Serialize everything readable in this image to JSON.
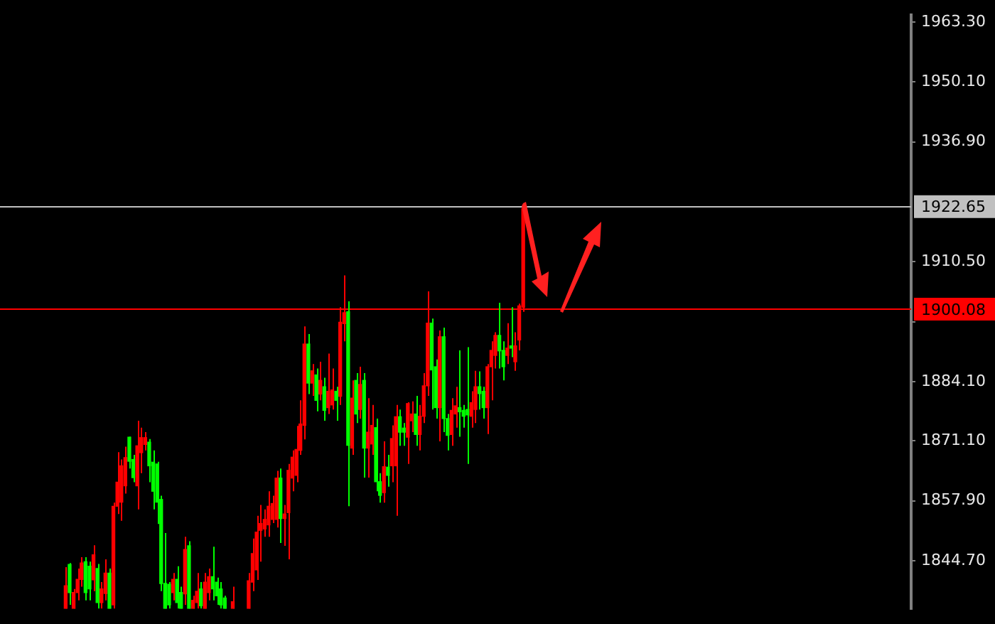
{
  "chart_data": {
    "type": "candlestick",
    "categories": [
      null,
      null,
      null,
      null,
      null,
      null,
      null,
      null,
      null,
      null,
      null,
      null,
      null,
      null,
      null,
      null,
      null,
      null,
      null,
      null,
      null,
      null,
      null,
      null,
      null,
      null,
      null,
      null,
      null,
      null,
      null,
      null,
      null,
      null,
      null,
      null,
      null,
      null,
      null,
      null,
      null,
      null,
      null,
      null,
      null,
      null,
      null,
      null,
      null,
      null,
      null,
      null,
      null,
      null,
      null,
      null,
      null,
      null,
      null,
      null,
      null,
      null,
      null,
      null,
      null,
      null,
      null,
      null,
      null,
      null,
      null,
      null,
      null,
      null,
      null,
      null,
      null,
      null,
      null,
      null,
      null,
      null,
      null,
      null,
      null,
      null,
      null,
      null,
      null,
      null,
      null,
      null,
      null,
      null,
      null,
      null,
      null,
      null,
      null,
      null,
      null,
      null,
      null,
      null,
      null,
      null,
      null,
      null,
      null,
      null,
      null,
      null,
      null,
      null,
      null,
      null,
      null,
      null,
      null,
      null,
      null,
      null,
      null,
      null,
      null,
      null,
      null,
      null,
      null,
      null,
      null,
      null,
      null,
      null,
      null,
      null,
      null,
      null,
      null,
      null,
      null,
      null,
      null,
      null,
      null,
      null,
      null,
      null,
      null,
      null,
      null,
      null,
      null,
      null,
      null,
      null,
      null,
      null,
      null,
      null,
      null,
      null,
      null,
      null,
      null,
      null,
      null,
      null,
      null,
      null,
      null,
      null,
      null,
      null,
      null,
      null,
      null,
      null,
      null,
      null,
      null,
      null,
      null,
      null,
      null,
      null,
      null,
      null,
      null,
      null,
      null,
      null,
      null,
      null,
      null,
      null,
      null,
      null,
      null,
      null,
      null,
      null,
      null,
      null,
      null,
      null,
      null,
      null,
      null,
      null,
      null,
      null,
      null,
      null,
      null,
      null,
      null,
      null,
      null,
      null,
      null,
      null,
      null,
      null,
      null,
      null,
      null,
      null,
      null
    ],
    "ohlc": [
      null,
      null,
      null,
      null,
      null,
      null,
      null,
      null,
      null,
      null,
      null,
      null,
      null,
      null,
      null,
      null,
      [
        1834.2,
        1843.3,
        1834.2,
        1839.2
      ],
      [
        1843.9,
        1844.2,
        1835,
        1837.7
      ],
      [
        1834.2,
        1838.5,
        1834.2,
        1837.7
      ],
      [
        1837.7,
        1843,
        1836,
        1840.6
      ],
      [
        1840.6,
        1845.5,
        1839,
        1844.2
      ],
      [
        1844.5,
        1845.5,
        1836,
        1837.7
      ],
      [
        1843.5,
        1844.5,
        1836,
        1838.5
      ],
      [
        1840.5,
        1848.1,
        1838,
        1846
      ],
      [
        1843,
        1844,
        1834.2,
        1835.5
      ],
      [
        1835.5,
        1840,
        1834.2,
        1838.5
      ],
      [
        1837.5,
        1845,
        1836,
        1842
      ],
      [
        1842,
        1843,
        1834.2,
        1834.2
      ],
      [
        1835,
        1857.5,
        1834.2,
        1856.7
      ],
      [
        1856.7,
        1868.6,
        1855,
        1862
      ],
      [
        1857.6,
        1867,
        1853.5,
        1865.6
      ],
      [
        1861.2,
        1869.8,
        1859.5,
        1867.4
      ],
      [
        1871.9,
        1872,
        1865,
        1866.6
      ],
      [
        1867,
        1868,
        1862,
        1863
      ],
      [
        1861.2,
        1875.5,
        1856,
        1870
      ],
      [
        1868.5,
        1874,
        1864,
        1871.8
      ],
      [
        1870.3,
        1873,
        1869,
        1871.8
      ],
      [
        1870.8,
        1871.5,
        1862,
        1865.6
      ],
      [
        1866.4,
        1869,
        1856,
        1860
      ],
      [
        1866,
        1866.5,
        1852.8,
        1857.6
      ],
      [
        1858.2,
        1859,
        1838,
        1839.7
      ],
      [
        1839.7,
        1850.8,
        1834.2,
        1834.2
      ],
      [
        1839.5,
        1840,
        1834.2,
        1835
      ],
      [
        1837.7,
        1842,
        1836,
        1840.6
      ],
      [
        1840.6,
        1843.5,
        1834.2,
        1835.5
      ],
      [
        1837.7,
        1839,
        1834.2,
        1834.2
      ],
      [
        1837.4,
        1850,
        1835,
        1847.2
      ],
      [
        1848,
        1849,
        1834.2,
        1834.2
      ],
      [
        1834.2,
        1837,
        1834.2,
        1836
      ],
      [
        1835.5,
        1842,
        1834.2,
        1838
      ],
      [
        1838.5,
        1840,
        1834.2,
        1834.8
      ],
      [
        1834.2,
        1842,
        1834.2,
        1840
      ],
      [
        1837.7,
        1843,
        1836,
        1841.2
      ],
      [
        1841.2,
        1847.8,
        1836,
        1838.5
      ],
      [
        1840,
        1841,
        1835,
        1837
      ],
      [
        1838.5,
        1840,
        1834.2,
        1835
      ],
      [
        1836.5,
        1837,
        1834.2,
        1834.2
      ],
      null,
      [
        1834.2,
        1839,
        1834.2,
        1835.7
      ],
      null,
      null,
      null,
      [
        1834.2,
        1842,
        1834.2,
        1840.3
      ],
      [
        1840,
        1849.6,
        1838,
        1846.3
      ],
      [
        1842.7,
        1854.6,
        1840.5,
        1851
      ],
      [
        1851.4,
        1857,
        1844.5,
        1852.9
      ],
      [
        1851.7,
        1856,
        1850,
        1853.8
      ],
      [
        1852.6,
        1860,
        1850,
        1856.7
      ],
      [
        1853.8,
        1859,
        1853,
        1857.3
      ],
      [
        1853.8,
        1864.5,
        1852,
        1862.9
      ],
      [
        1862.9,
        1865,
        1848.6,
        1854
      ],
      [
        1854,
        1857,
        1848,
        1855
      ],
      [
        1855.3,
        1866,
        1845,
        1864.6
      ],
      [
        1862.9,
        1869,
        1860,
        1867.5
      ],
      [
        1863.5,
        1874.4,
        1862,
        1869.2
      ],
      [
        1869,
        1880,
        1868,
        1874.8
      ],
      [
        1874.5,
        1896.3,
        1871.4,
        1892.4
      ],
      [
        1892.4,
        1894.6,
        1881.4,
        1883.8
      ],
      [
        1883.8,
        1888,
        1881,
        1886.5
      ],
      [
        1885.6,
        1887,
        1877.6,
        1880
      ],
      [
        1881.4,
        1888.5,
        1880,
        1884.4
      ],
      [
        1883,
        1885,
        1875.5,
        1877.8
      ],
      [
        1878.4,
        1890.3,
        1877,
        1882
      ],
      [
        1879,
        1887,
        1878,
        1882.3
      ],
      [
        1882,
        1883,
        1875.5,
        1880
      ],
      [
        1880.9,
        1900.5,
        1879,
        1897.2
      ],
      [
        1896.9,
        1907.5,
        1893,
        1899.3
      ],
      [
        1899.5,
        1901.8,
        1856.7,
        1870.1
      ],
      [
        1869.5,
        1884.4,
        1868,
        1880.5
      ],
      [
        1884.4,
        1886,
        1875,
        1877
      ],
      [
        1878,
        1887.4,
        1876,
        1883.5
      ],
      [
        1884.4,
        1886,
        1863,
        1869.5
      ],
      [
        1869.5,
        1880.5,
        1863,
        1873
      ],
      [
        1870.4,
        1879,
        1868,
        1874.5
      ],
      [
        1874,
        1876,
        1860,
        1862.1
      ],
      [
        1862.1,
        1864,
        1857.5,
        1859.1
      ],
      [
        1859.7,
        1871,
        1857.5,
        1865.4
      ],
      [
        1865.3,
        1868,
        1861,
        1863.5
      ],
      [
        1865.6,
        1874.5,
        1862,
        1871.6
      ],
      [
        1865.6,
        1879,
        1854.6,
        1876.4
      ],
      [
        1876.4,
        1878,
        1870,
        1873
      ],
      [
        1873.9,
        1875,
        1870,
        1873
      ],
      [
        1871.9,
        1879.6,
        1866,
        1879.3
      ],
      [
        1875.5,
        1879.8,
        1873,
        1877
      ],
      [
        1877,
        1881,
        1870,
        1872.5
      ],
      [
        1872.5,
        1879,
        1869,
        1876.5
      ],
      [
        1876.5,
        1886,
        1875,
        1883.2
      ],
      [
        1883.2,
        1904,
        1881,
        1897
      ],
      [
        1897,
        1898,
        1878,
        1886.7
      ],
      [
        1887.4,
        1889,
        1876,
        1878.4
      ],
      [
        1878.4,
        1895.4,
        1871,
        1894
      ],
      [
        1894,
        1896,
        1873,
        1876
      ],
      [
        1876,
        1877,
        1869,
        1872.3
      ],
      [
        1872.5,
        1880.5,
        1870,
        1877.8
      ],
      [
        1877,
        1883,
        1874,
        1878.8
      ],
      [
        1878.4,
        1891,
        1872,
        1877.5
      ],
      [
        1877.8,
        1879,
        1874,
        1876.5
      ],
      [
        1878,
        1891.7,
        1866,
        1876.8
      ],
      [
        1876.5,
        1882,
        1874,
        1879.5
      ],
      [
        1878,
        1886.5,
        1875,
        1883
      ],
      [
        1883,
        1886.4,
        1878,
        1881.5
      ],
      [
        1882,
        1883,
        1876,
        1878.4
      ],
      [
        1878.4,
        1888,
        1872.6,
        1887.4
      ],
      [
        1887.4,
        1893,
        1880,
        1891
      ],
      [
        1889.9,
        1895,
        1887,
        1894.3
      ],
      [
        1894.3,
        1901.5,
        1887,
        1890.9
      ],
      [
        1891,
        1893,
        1884.4,
        1887.4
      ],
      [
        1889.9,
        1897,
        1888,
        1891.5
      ],
      [
        1892,
        1900.5,
        1889.5,
        1891.5
      ],
      [
        1888.5,
        1895,
        1886.5,
        1892
      ],
      [
        1893.3,
        1901.3,
        1891,
        1900.8
      ],
      [
        1900.5,
        1922.65,
        1899.5,
        1922.2
      ],
      null,
      null,
      null,
      null,
      null,
      null,
      null,
      null,
      null,
      null,
      null,
      null,
      null,
      null,
      null,
      null,
      null,
      null,
      null,
      null,
      null,
      null,
      null,
      null,
      null,
      null,
      null,
      null,
      null,
      null,
      null,
      null,
      null,
      null,
      null,
      null,
      null,
      null,
      null,
      null,
      null,
      null,
      null,
      null,
      null,
      null,
      null,
      null,
      null,
      null,
      null,
      null,
      null,
      null,
      null,
      null,
      null,
      null,
      null,
      null,
      null,
      null,
      null,
      null,
      null,
      null,
      null,
      null,
      null,
      null,
      null,
      null,
      null,
      null,
      null,
      null,
      null,
      null,
      null,
      null,
      null,
      null,
      null,
      null,
      null,
      null,
      null,
      null,
      null,
      null,
      null,
      null,
      null,
      null,
      null,
      null,
      null
    ],
    "colors": [
      null,
      null,
      null,
      null,
      null,
      null,
      null,
      null,
      null,
      null,
      null,
      null,
      null,
      null,
      null,
      null,
      "#ff0000",
      "#00ff00",
      "#ff0000",
      "#ff0000",
      "#ff0000",
      "#00ff00",
      "#00ff00",
      "#ff0000",
      "#00ff00",
      "#ff0000",
      "#ff0000",
      "#00ff00",
      "#ff0000",
      "#ff0000",
      "#ff0000",
      "#ff0000",
      "#00ff00",
      "#00ff00",
      "#ff0000",
      "#ff0000",
      "#ff0000",
      "#00ff00",
      "#00ff00",
      "#00ff00",
      "#00ff00",
      "#00ff00",
      "#00ff00",
      "#ff0000",
      "#00ff00",
      "#00ff00",
      "#ff0000",
      "#00ff00",
      "#ff0000",
      "#ff0000",
      "#00ff00",
      "#ff0000",
      "#ff0000",
      "#00ff00",
      "#00ff00",
      "#00ff00",
      "#00ff00",
      null,
      "#ff0000",
      null,
      null,
      null,
      "#ff0000",
      "#ff0000",
      "#ff0000",
      "#ff0000",
      "#ff0000",
      "#ff0000",
      "#ff0000",
      "#ff0000",
      "#00ff00",
      "#ff0000",
      "#ff0000",
      "#ff0000",
      "#ff0000",
      "#ff0000",
      "#ff0000",
      "#00ff00",
      "#ff0000",
      "#00ff00",
      "#ff0000",
      "#00ff00",
      "#ff0000",
      "#ff0000",
      "#00ff00",
      "#ff0000",
      "#ff0000",
      "#00ff00",
      "#ff0000",
      "#00ff00",
      "#ff0000",
      "#00ff00",
      "#ff0000",
      "#ff0000",
      "#00ff00",
      "#00ff00",
      "#ff0000",
      "#00ff00",
      "#ff0000",
      "#ff0000",
      "#00ff00",
      "#00ff00",
      "#ff0000",
      "#ff0000",
      "#00ff00",
      "#ff0000",
      "#ff0000",
      "#ff0000",
      "#00ff00",
      "#00ff00",
      "#ff0000",
      "#00ff00",
      "#00ff00",
      "#ff0000",
      "#ff0000",
      "#00ff00",
      "#00ff00",
      "#00ff00",
      "#ff0000",
      "#ff0000",
      "#00ff00",
      "#00ff00",
      "#ff0000",
      "#ff0000",
      "#ff0000",
      "#00ff00",
      "#00ff00",
      "#ff0000",
      "#00ff00",
      "#ff0000",
      "#ff0000",
      "#ff0000",
      null,
      null,
      null,
      null,
      null,
      null,
      null,
      null,
      null,
      null,
      null,
      null,
      null,
      null,
      null,
      null,
      null,
      null,
      null,
      null,
      null,
      null,
      null,
      null,
      null,
      null,
      null,
      null,
      null,
      null,
      null,
      null,
      null,
      null,
      null,
      null,
      null,
      null,
      null,
      null,
      null,
      null,
      null,
      null,
      null,
      null,
      null,
      null,
      null,
      null,
      null,
      null,
      null,
      null,
      null,
      null,
      null,
      null,
      null,
      null,
      null,
      null,
      null,
      null,
      null,
      null,
      null,
      null,
      null,
      null,
      null,
      null,
      null,
      null,
      null,
      null,
      null,
      null,
      null,
      null,
      null,
      null,
      null,
      null,
      null,
      null,
      null,
      null,
      null,
      null,
      null,
      null,
      null,
      null,
      null,
      null,
      null
    ],
    "ylim": [
      1834.1,
      1964.8
    ],
    "yticks": [
      {
        "value": 1963.3,
        "label": "1963.30"
      },
      {
        "value": 1950.1,
        "label": "1950.10"
      },
      {
        "value": 1936.9,
        "label": "1936.90"
      },
      {
        "value": 1910.5,
        "label": "1910.50"
      },
      {
        "value": 1897.3,
        "label": null
      },
      {
        "value": 1884.1,
        "label": "1884.10"
      },
      {
        "value": 1871.1,
        "label": "1871.10"
      },
      {
        "value": 1857.9,
        "label": "1857.90"
      },
      {
        "value": 1844.7,
        "label": "1844.70"
      }
    ],
    "ref_lines": [
      {
        "axis": "y",
        "value": 1922.65,
        "label": "1922.65",
        "color": "#c0c0c0"
      },
      {
        "axis": "y",
        "value": 1900.08,
        "label": "1900.08",
        "color": "#ff0000"
      }
    ]
  }
}
